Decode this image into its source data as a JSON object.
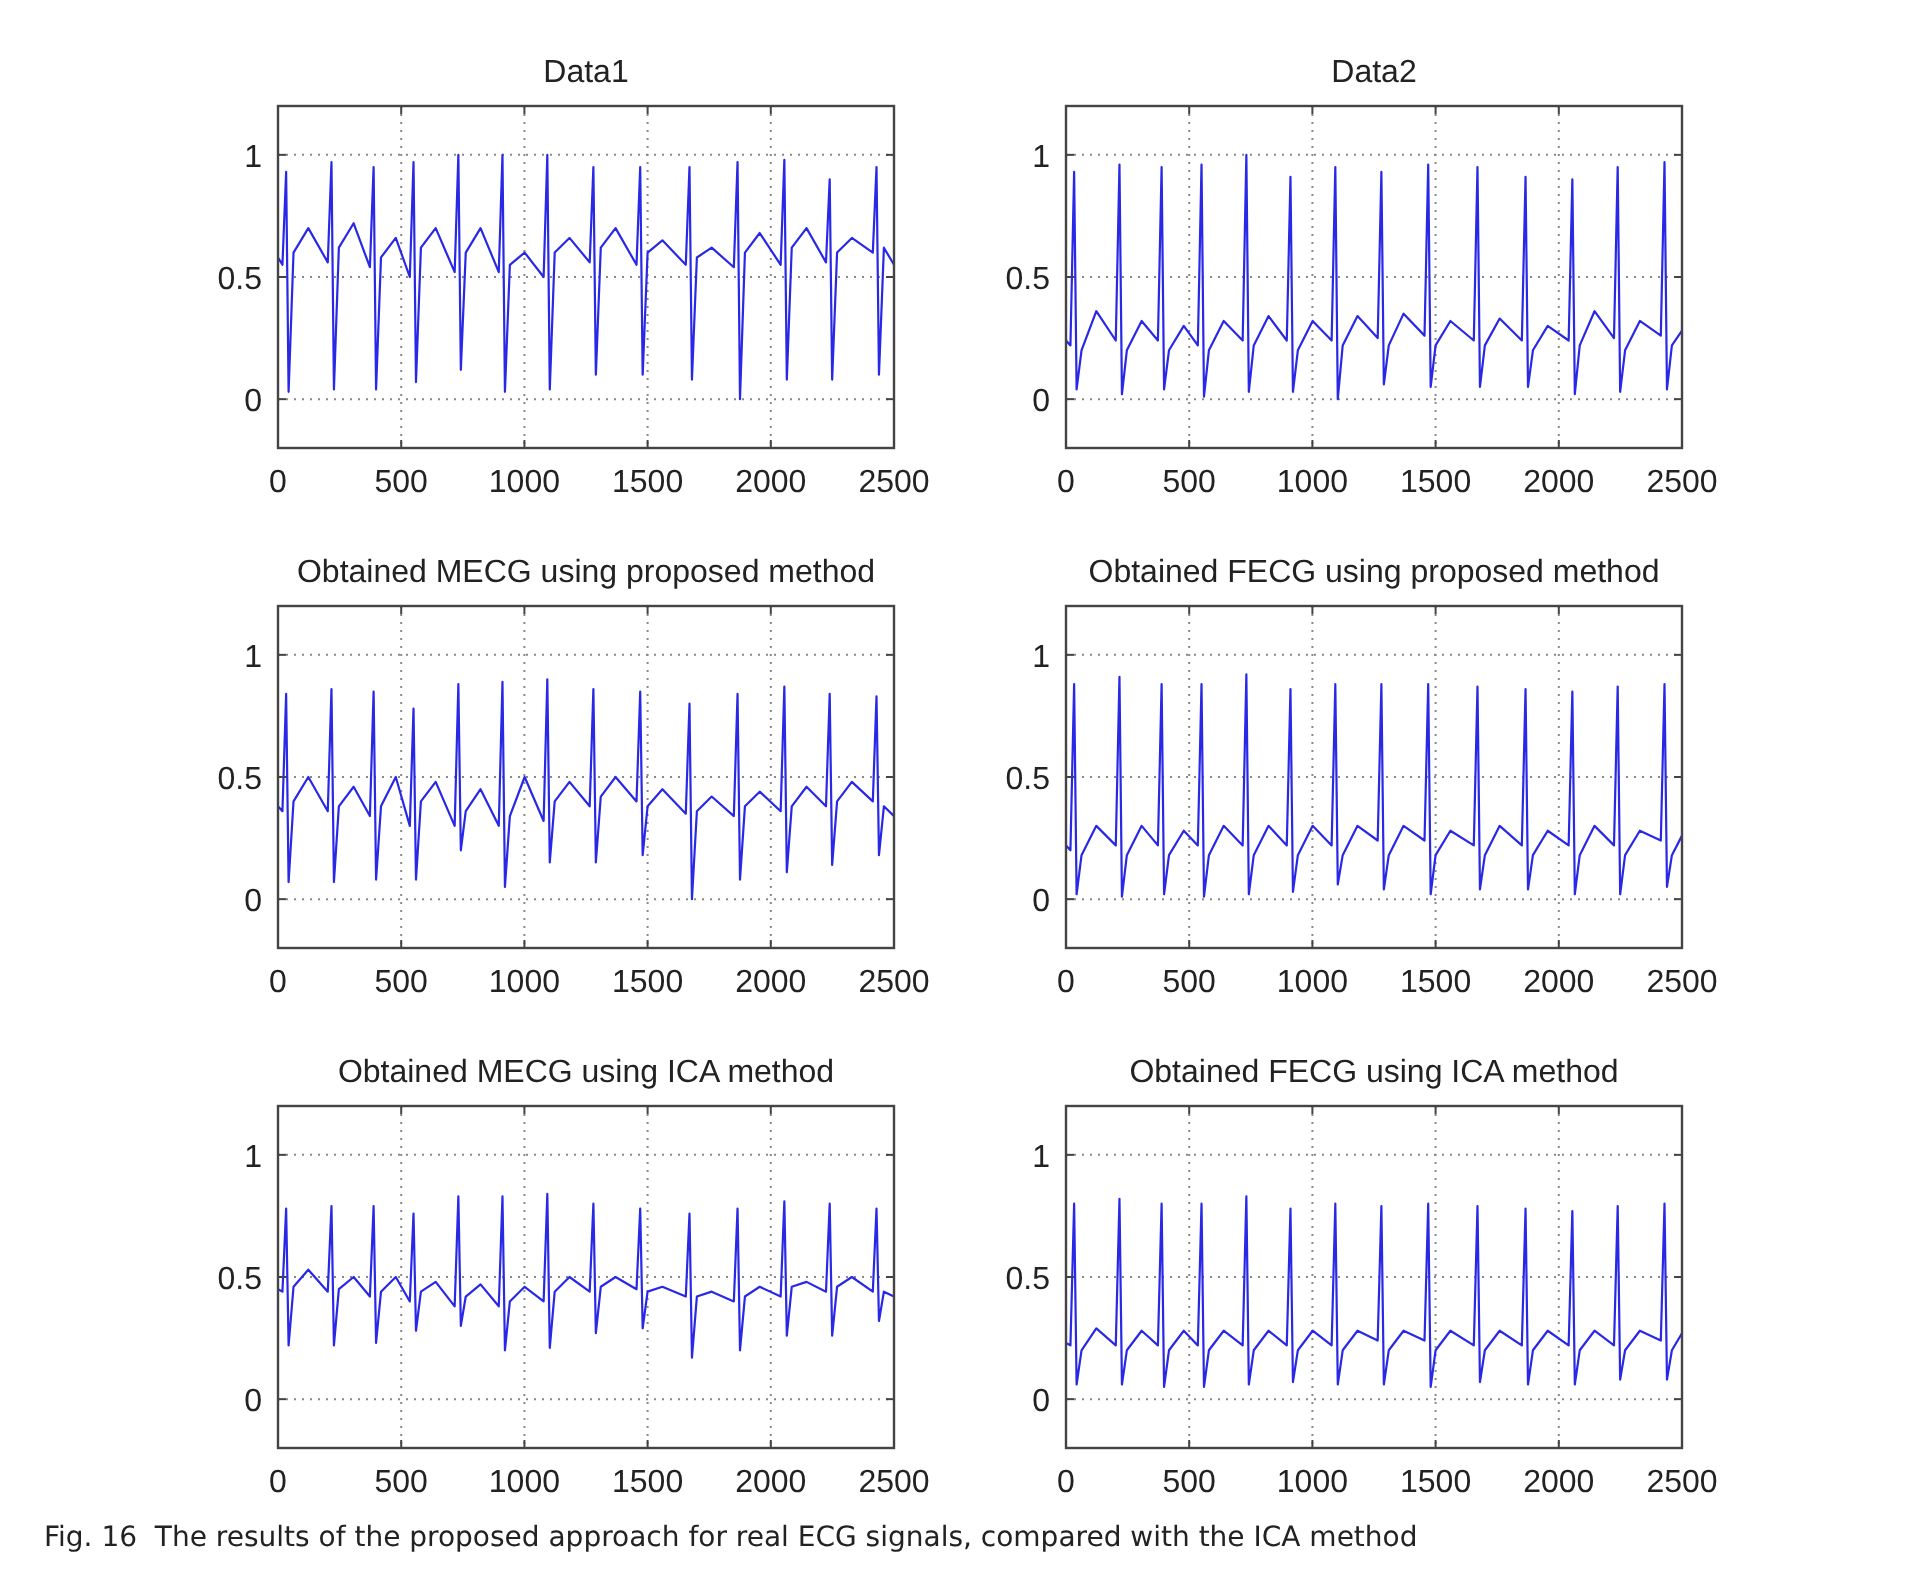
{
  "chart_data": [
    {
      "type": "line",
      "title": "Data1",
      "xlim": [
        0,
        2500
      ],
      "xticks": [
        0,
        500,
        1000,
        1500,
        2000,
        2500
      ],
      "ylim": [
        -0.2,
        1.2
      ],
      "yticks": [
        0,
        0.5,
        1
      ],
      "grid": true,
      "x": [
        0,
        18,
        33,
        43,
        63,
        123,
        202,
        217,
        227,
        247,
        307,
        373,
        388,
        398,
        418,
        478,
        535,
        550,
        560,
        580,
        640,
        717,
        732,
        742,
        762,
        822,
        896,
        911,
        921,
        941,
        1001,
        1078,
        1093,
        1103,
        1123,
        1183,
        1265,
        1280,
        1290,
        1310,
        1370,
        1455,
        1470,
        1480,
        1500,
        1560,
        1655,
        1670,
        1680,
        1700,
        1760,
        1850,
        1865,
        1875,
        1895,
        1955,
        2040,
        2055,
        2065,
        2085,
        2145,
        2224,
        2239,
        2249,
        2269,
        2329,
        2414,
        2429,
        2439,
        2459,
        2500
      ],
      "series": [
        {
          "color": "#2828e6",
          "values": [
            0.58,
            0.55,
            0.93,
            0.03,
            0.6,
            0.7,
            0.56,
            0.97,
            0.04,
            0.62,
            0.72,
            0.54,
            0.95,
            0.04,
            0.58,
            0.66,
            0.5,
            0.97,
            0.07,
            0.62,
            0.7,
            0.52,
            1.0,
            0.12,
            0.6,
            0.7,
            0.52,
            1.0,
            0.03,
            0.55,
            0.6,
            0.5,
            1.0,
            0.04,
            0.6,
            0.66,
            0.56,
            0.95,
            0.1,
            0.62,
            0.7,
            0.55,
            0.95,
            0.1,
            0.6,
            0.65,
            0.55,
            0.95,
            0.08,
            0.58,
            0.62,
            0.54,
            0.97,
            0.0,
            0.6,
            0.68,
            0.55,
            0.98,
            0.08,
            0.62,
            0.7,
            0.56,
            0.9,
            0.08,
            0.6,
            0.66,
            0.6,
            0.95,
            0.1,
            0.62,
            0.55
          ]
        }
      ]
    },
    {
      "type": "line",
      "title": "Data2",
      "xlim": [
        0,
        2500
      ],
      "xticks": [
        0,
        500,
        1000,
        1500,
        2000,
        2500
      ],
      "ylim": [
        -0.2,
        1.2
      ],
      "yticks": [
        0,
        0.5,
        1
      ],
      "grid": true,
      "x": [
        0,
        18,
        33,
        43,
        63,
        123,
        202,
        217,
        227,
        247,
        307,
        373,
        388,
        398,
        418,
        478,
        535,
        550,
        560,
        580,
        640,
        717,
        732,
        742,
        762,
        822,
        896,
        911,
        921,
        941,
        1001,
        1078,
        1093,
        1103,
        1123,
        1183,
        1265,
        1280,
        1290,
        1310,
        1370,
        1455,
        1470,
        1480,
        1500,
        1560,
        1655,
        1670,
        1680,
        1700,
        1760,
        1850,
        1865,
        1875,
        1895,
        1955,
        2040,
        2055,
        2065,
        2085,
        2145,
        2224,
        2239,
        2249,
        2269,
        2329,
        2414,
        2429,
        2439,
        2459,
        2500
      ],
      "series": [
        {
          "color": "#2828e6",
          "values": [
            0.24,
            0.22,
            0.93,
            0.04,
            0.2,
            0.36,
            0.24,
            0.96,
            0.02,
            0.2,
            0.32,
            0.24,
            0.95,
            0.04,
            0.2,
            0.3,
            0.22,
            0.96,
            0.01,
            0.2,
            0.32,
            0.24,
            1.0,
            0.03,
            0.22,
            0.34,
            0.24,
            0.91,
            0.03,
            0.2,
            0.32,
            0.24,
            0.95,
            0.0,
            0.22,
            0.34,
            0.25,
            0.93,
            0.06,
            0.22,
            0.35,
            0.26,
            0.96,
            0.05,
            0.22,
            0.32,
            0.24,
            0.95,
            0.05,
            0.22,
            0.33,
            0.24,
            0.91,
            0.05,
            0.2,
            0.3,
            0.24,
            0.9,
            0.02,
            0.22,
            0.36,
            0.25,
            0.95,
            0.03,
            0.2,
            0.32,
            0.26,
            0.97,
            0.04,
            0.22,
            0.28
          ]
        }
      ]
    },
    {
      "type": "line",
      "title": "Obtained MECG using proposed method",
      "xlim": [
        0,
        2500
      ],
      "xticks": [
        0,
        500,
        1000,
        1500,
        2000,
        2500
      ],
      "ylim": [
        -0.2,
        1.2
      ],
      "yticks": [
        0,
        0.5,
        1
      ],
      "grid": true,
      "x": [
        0,
        18,
        33,
        43,
        63,
        123,
        202,
        217,
        227,
        247,
        307,
        373,
        388,
        398,
        418,
        478,
        535,
        550,
        560,
        580,
        640,
        717,
        732,
        742,
        762,
        822,
        896,
        911,
        921,
        941,
        1001,
        1078,
        1093,
        1103,
        1123,
        1183,
        1265,
        1280,
        1290,
        1310,
        1370,
        1455,
        1470,
        1480,
        1500,
        1560,
        1655,
        1670,
        1680,
        1700,
        1760,
        1850,
        1865,
        1875,
        1895,
        1955,
        2040,
        2055,
        2065,
        2085,
        2145,
        2224,
        2239,
        2249,
        2269,
        2329,
        2414,
        2429,
        2439,
        2459,
        2500
      ],
      "series": [
        {
          "color": "#2828e6",
          "values": [
            0.38,
            0.36,
            0.84,
            0.07,
            0.4,
            0.5,
            0.36,
            0.86,
            0.07,
            0.38,
            0.46,
            0.34,
            0.85,
            0.08,
            0.38,
            0.5,
            0.3,
            0.78,
            0.08,
            0.4,
            0.48,
            0.3,
            0.88,
            0.2,
            0.36,
            0.45,
            0.3,
            0.89,
            0.05,
            0.34,
            0.5,
            0.32,
            0.9,
            0.15,
            0.4,
            0.48,
            0.38,
            0.86,
            0.15,
            0.42,
            0.5,
            0.4,
            0.85,
            0.18,
            0.38,
            0.45,
            0.35,
            0.8,
            0.0,
            0.36,
            0.42,
            0.34,
            0.84,
            0.08,
            0.38,
            0.44,
            0.36,
            0.87,
            0.11,
            0.38,
            0.46,
            0.38,
            0.84,
            0.14,
            0.4,
            0.48,
            0.4,
            0.83,
            0.18,
            0.38,
            0.34
          ]
        }
      ]
    },
    {
      "type": "line",
      "title": "Obtained FECG using proposed method",
      "xlim": [
        0,
        2500
      ],
      "xticks": [
        0,
        500,
        1000,
        1500,
        2000,
        2500
      ],
      "ylim": [
        -0.2,
        1.2
      ],
      "yticks": [
        0,
        0.5,
        1
      ],
      "grid": true,
      "x": [
        0,
        18,
        33,
        43,
        63,
        123,
        202,
        217,
        227,
        247,
        307,
        373,
        388,
        398,
        418,
        478,
        535,
        550,
        560,
        580,
        640,
        717,
        732,
        742,
        762,
        822,
        896,
        911,
        921,
        941,
        1001,
        1078,
        1093,
        1103,
        1123,
        1183,
        1265,
        1280,
        1290,
        1310,
        1370,
        1455,
        1470,
        1480,
        1500,
        1560,
        1655,
        1670,
        1680,
        1700,
        1760,
        1850,
        1865,
        1875,
        1895,
        1955,
        2040,
        2055,
        2065,
        2085,
        2145,
        2224,
        2239,
        2249,
        2269,
        2329,
        2414,
        2429,
        2439,
        2459,
        2500
      ],
      "series": [
        {
          "color": "#2828e6",
          "values": [
            0.22,
            0.2,
            0.88,
            0.02,
            0.18,
            0.3,
            0.22,
            0.91,
            0.01,
            0.18,
            0.3,
            0.22,
            0.88,
            0.02,
            0.18,
            0.28,
            0.22,
            0.88,
            0.01,
            0.18,
            0.3,
            0.22,
            0.92,
            0.02,
            0.18,
            0.3,
            0.22,
            0.86,
            0.03,
            0.18,
            0.3,
            0.22,
            0.88,
            0.06,
            0.18,
            0.3,
            0.24,
            0.88,
            0.04,
            0.18,
            0.3,
            0.24,
            0.88,
            0.02,
            0.18,
            0.28,
            0.22,
            0.87,
            0.04,
            0.18,
            0.3,
            0.22,
            0.86,
            0.04,
            0.18,
            0.28,
            0.22,
            0.85,
            0.02,
            0.18,
            0.3,
            0.22,
            0.87,
            0.02,
            0.18,
            0.28,
            0.24,
            0.88,
            0.05,
            0.18,
            0.26
          ]
        }
      ]
    },
    {
      "type": "line",
      "title": "Obtained MECG using ICA method",
      "xlim": [
        0,
        2500
      ],
      "xticks": [
        0,
        500,
        1000,
        1500,
        2000,
        2500
      ],
      "ylim": [
        -0.2,
        1.2
      ],
      "yticks": [
        0,
        0.5,
        1
      ],
      "grid": true,
      "x": [
        0,
        18,
        33,
        43,
        63,
        123,
        202,
        217,
        227,
        247,
        307,
        373,
        388,
        398,
        418,
        478,
        535,
        550,
        560,
        580,
        640,
        717,
        732,
        742,
        762,
        822,
        896,
        911,
        921,
        941,
        1001,
        1078,
        1093,
        1103,
        1123,
        1183,
        1265,
        1280,
        1290,
        1310,
        1370,
        1455,
        1470,
        1480,
        1500,
        1560,
        1655,
        1670,
        1680,
        1700,
        1760,
        1850,
        1865,
        1875,
        1895,
        1955,
        2040,
        2055,
        2065,
        2085,
        2145,
        2224,
        2239,
        2249,
        2269,
        2329,
        2414,
        2429,
        2439,
        2459,
        2500
      ],
      "series": [
        {
          "color": "#2828e6",
          "values": [
            0.45,
            0.44,
            0.78,
            0.22,
            0.46,
            0.53,
            0.44,
            0.79,
            0.22,
            0.45,
            0.5,
            0.42,
            0.79,
            0.23,
            0.44,
            0.5,
            0.4,
            0.76,
            0.28,
            0.44,
            0.48,
            0.38,
            0.83,
            0.3,
            0.42,
            0.47,
            0.38,
            0.83,
            0.2,
            0.4,
            0.46,
            0.4,
            0.84,
            0.21,
            0.44,
            0.5,
            0.44,
            0.8,
            0.27,
            0.46,
            0.5,
            0.45,
            0.78,
            0.29,
            0.44,
            0.46,
            0.42,
            0.76,
            0.17,
            0.42,
            0.44,
            0.4,
            0.78,
            0.2,
            0.42,
            0.46,
            0.42,
            0.81,
            0.26,
            0.46,
            0.48,
            0.44,
            0.8,
            0.26,
            0.46,
            0.5,
            0.44,
            0.78,
            0.32,
            0.44,
            0.42
          ]
        }
      ]
    },
    {
      "type": "line",
      "title": "Obtained FECG using ICA method",
      "xlim": [
        0,
        2500
      ],
      "xticks": [
        0,
        500,
        1000,
        1500,
        2000,
        2500
      ],
      "ylim": [
        -0.2,
        1.2
      ],
      "yticks": [
        0,
        0.5,
        1
      ],
      "grid": true,
      "annotations": [
        "Fig. 16  The results of the proposed approach for real ECG signals, compared with the ICA method"
      ],
      "x": [
        0,
        18,
        33,
        43,
        63,
        123,
        202,
        217,
        227,
        247,
        307,
        373,
        388,
        398,
        418,
        478,
        535,
        550,
        560,
        580,
        640,
        717,
        732,
        742,
        762,
        822,
        896,
        911,
        921,
        941,
        1001,
        1078,
        1093,
        1103,
        1123,
        1183,
        1265,
        1280,
        1290,
        1310,
        1370,
        1455,
        1470,
        1480,
        1500,
        1560,
        1655,
        1670,
        1680,
        1700,
        1760,
        1850,
        1865,
        1875,
        1895,
        1955,
        2040,
        2055,
        2065,
        2085,
        2145,
        2224,
        2239,
        2249,
        2269,
        2329,
        2414,
        2429,
        2439,
        2459,
        2500
      ],
      "series": [
        {
          "color": "#2828e6",
          "values": [
            0.23,
            0.22,
            0.8,
            0.06,
            0.2,
            0.29,
            0.22,
            0.82,
            0.06,
            0.2,
            0.28,
            0.22,
            0.8,
            0.05,
            0.2,
            0.28,
            0.22,
            0.8,
            0.05,
            0.2,
            0.28,
            0.22,
            0.83,
            0.06,
            0.2,
            0.28,
            0.22,
            0.78,
            0.07,
            0.2,
            0.28,
            0.22,
            0.8,
            0.06,
            0.2,
            0.28,
            0.24,
            0.79,
            0.06,
            0.2,
            0.28,
            0.24,
            0.8,
            0.05,
            0.2,
            0.28,
            0.22,
            0.79,
            0.07,
            0.2,
            0.28,
            0.22,
            0.78,
            0.06,
            0.2,
            0.28,
            0.22,
            0.77,
            0.06,
            0.2,
            0.28,
            0.22,
            0.79,
            0.08,
            0.2,
            0.28,
            0.24,
            0.8,
            0.08,
            0.2,
            0.27
          ]
        }
      ]
    }
  ]
}
